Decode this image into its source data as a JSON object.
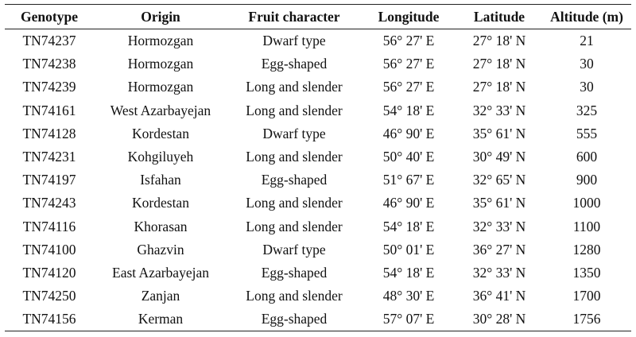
{
  "table": {
    "headers": [
      "Genotype",
      "Origin",
      "Fruit character",
      "Longitude",
      "Latitude",
      "Altitude (m)"
    ],
    "rows": [
      [
        "TN74237",
        "Hormozgan",
        "Dwarf type",
        "56° 27' E",
        "27° 18' N",
        "21"
      ],
      [
        "TN74238",
        "Hormozgan",
        "Egg-shaped",
        "56° 27' E",
        "27° 18' N",
        "30"
      ],
      [
        "TN74239",
        "Hormozgan",
        "Long and slender",
        "56° 27' E",
        "27° 18' N",
        "30"
      ],
      [
        "TN74161",
        "West Azarbayejan",
        "Long and slender",
        "54° 18' E",
        "32° 33' N",
        "325"
      ],
      [
        "TN74128",
        "Kordestan",
        "Dwarf type",
        "46° 90' E",
        "35° 61' N",
        "555"
      ],
      [
        "TN74231",
        "Kohgiluyeh",
        "Long and slender",
        "50° 40' E",
        "30° 49' N",
        "600"
      ],
      [
        "TN74197",
        "Isfahan",
        "Egg-shaped",
        "51° 67' E",
        "32° 65' N",
        "900"
      ],
      [
        "TN74243",
        "Kordestan",
        "Long and slender",
        "46° 90' E",
        "35° 61' N",
        "1000"
      ],
      [
        "TN74116",
        "Khorasan",
        "Long and slender",
        "54° 18' E",
        "32° 33' N",
        "1100"
      ],
      [
        "TN74100",
        "Ghazvin",
        "Dwarf type",
        "50° 01' E",
        "36° 27' N",
        "1280"
      ],
      [
        "TN74120",
        "East Azarbayejan",
        "Egg-shaped",
        "54° 18' E",
        "32° 33' N",
        "1350"
      ],
      [
        "TN74250",
        "Zanjan",
        "Long and slender",
        "48° 30' E",
        "36° 41' N",
        "1700"
      ],
      [
        "TN74156",
        "Kerman",
        "Egg-shaped",
        "57° 07' E",
        "30° 28' N",
        "1756"
      ]
    ]
  }
}
